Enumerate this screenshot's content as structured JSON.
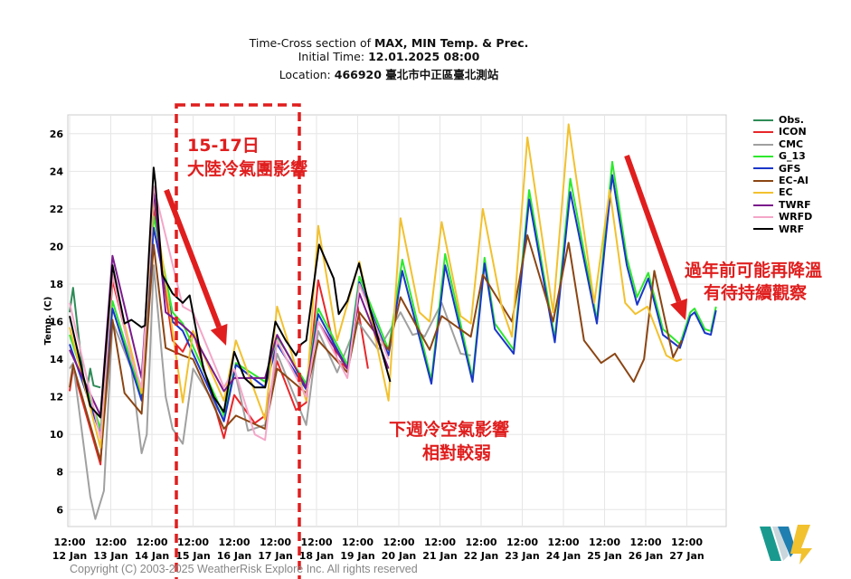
{
  "header": {
    "line1_prefix": "Time-Cross section of ",
    "line1_bold": "MAX, MIN Temp. & Prec.",
    "line2_prefix": "Initial Time: ",
    "line2_bold": "12.01.2025 08:00",
    "line3_prefix": "Location: ",
    "line3_bold": "466920 臺北市中正區臺北測站"
  },
  "annotations": {
    "box_title": "15-17日",
    "box_subtitle": "大陸冷氣團影響",
    "middle_line1": "下週冷空氣影響",
    "middle_line2": "相對較弱",
    "right_line1": "過年前可能再降溫",
    "right_line2": "有待持續觀察",
    "color": "#e01e1e"
  },
  "footer": {
    "copyright": "Copyright (C) 2003-2025 WeatherRisk Explore Inc. All rights reserved"
  },
  "logo": {
    "text": "W",
    "colors": [
      "#1a9a8f",
      "#c9d6dc",
      "#1f7fb0",
      "#f2c12e"
    ]
  },
  "chart_data": {
    "type": "line",
    "title": "Time-Cross section of MAX, MIN Temp. & Prec.",
    "ylabel": "Temp. (C)",
    "xlabel": "",
    "ylim": [
      5.1,
      27
    ],
    "xlim": [
      "12 Jan 12:00",
      "27 Jan 22:00"
    ],
    "yticks": [
      6,
      8,
      10,
      12,
      14,
      16,
      18,
      20,
      22,
      24,
      26
    ],
    "xticks": [
      [
        "12:00",
        "12 Jan"
      ],
      [
        "12:00",
        "13 Jan"
      ],
      [
        "12:00",
        "14 Jan"
      ],
      [
        "12:00",
        "15 Jan"
      ],
      [
        "12:00",
        "16 Jan"
      ],
      [
        "12:00",
        "17 Jan"
      ],
      [
        "12:00",
        "18 Jan"
      ],
      [
        "12:00",
        "19 Jan"
      ],
      [
        "12:00",
        "20 Jan"
      ],
      [
        "12:00",
        "21 Jan"
      ],
      [
        "12:00",
        "22 Jan"
      ],
      [
        "12:00",
        "23 Jan"
      ],
      [
        "12:00",
        "24 Jan"
      ],
      [
        "12:00",
        "25 Jan"
      ],
      [
        "12:00",
        "26 Jan"
      ],
      [
        "12:00",
        "27 Jan"
      ]
    ],
    "grid": true,
    "legend_position": "right",
    "series": [
      {
        "name": "Obs.",
        "color": "#2e8b57",
        "x": [
          "12 Jan 12:00",
          "12 Jan 14:00",
          "12 Jan 20:00",
          "12 Jan 22:00",
          "13 Jan 00:00",
          "13 Jan 02:00",
          "13 Jan 06:00"
        ],
        "y": [
          16.5,
          17.8,
          13.0,
          12.3,
          13.5,
          12.6,
          12.5
        ]
      },
      {
        "name": "ICON",
        "color": "#e8262a",
        "x": [
          "12 Jan 12:00",
          "12 Jan 14:00",
          "13 Jan 06:00",
          "13 Jan 13:00",
          "14 Jan 06:00",
          "14 Jan 13:00",
          "15 Jan 00:00",
          "15 Jan 06:00",
          "15 Jan 12:00",
          "16 Jan 06:00",
          "16 Jan 12:00",
          "17 Jan 00:00",
          "17 Jan 06:00",
          "17 Jan 13:00",
          "18 Jan 00:00",
          "18 Jan 06:00",
          "18 Jan 13:00",
          "19 Jan 00:00",
          "19 Jan 06:00",
          "19 Jan 12:00",
          "19 Jan 18:00"
        ],
        "y": [
          12.3,
          13.5,
          8.4,
          18.2,
          12.0,
          22.0,
          15.0,
          14.4,
          15.5,
          9.8,
          12.1,
          10.6,
          11.0,
          13.9,
          11.3,
          11.7,
          18.2,
          14.0,
          13.5,
          16.8,
          13.5
        ]
      },
      {
        "name": "CMC",
        "color": "#a0a0a0",
        "x": [
          "12 Jan 12:00",
          "12 Jan 14:00",
          "13 Jan 00:00",
          "13 Jan 03:00",
          "13 Jan 08:00",
          "13 Jan 13:00",
          "14 Jan 00:00",
          "14 Jan 06:00",
          "14 Jan 09:00",
          "14 Jan 13:00",
          "14 Jan 20:00",
          "15 Jan 00:00",
          "15 Jan 06:00",
          "15 Jan 12:00",
          "16 Jan 06:00",
          "16 Jan 12:00",
          "16 Jan 20:00",
          "17 Jan 06:00",
          "17 Jan 13:00",
          "18 Jan 06:00",
          "18 Jan 13:00",
          "19 Jan 00:00",
          "19 Jan 12:00",
          "20 Jan 00:00",
          "20 Jan 13:00",
          "20 Jan 20:00",
          "21 Jan 00:00",
          "21 Jan 03:00",
          "21 Jan 13:00",
          "22 Jan 00:00",
          "22 Jan 06:00"
        ],
        "y": [
          13.5,
          13.8,
          6.7,
          5.5,
          7.0,
          16.0,
          13.5,
          9.0,
          10.0,
          19.0,
          12.0,
          10.3,
          9.5,
          13.5,
          10.8,
          13.5,
          10.2,
          10.5,
          14.3,
          10.5,
          15.5,
          13.3,
          16.0,
          14.5,
          16.5,
          15.3,
          15.4,
          15.2,
          17.0,
          14.3,
          14.2
        ]
      },
      {
        "name": "G_13",
        "color": "#2ee82e",
        "x": [
          "12 Jan 12:00",
          "13 Jan 06:00",
          "13 Jan 13:00",
          "14 Jan 06:00",
          "14 Jan 13:00",
          "15 Jan 00:00",
          "15 Jan 06:00",
          "16 Jan 06:00",
          "16 Jan 13:00",
          "17 Jan 06:00",
          "17 Jan 13:00",
          "18 Jan 06:00",
          "18 Jan 13:00",
          "19 Jan 06:00",
          "19 Jan 13:00",
          "20 Jan 06:00",
          "20 Jan 14:00",
          "21 Jan 07:00",
          "21 Jan 15:00",
          "22 Jan 07:00",
          "22 Jan 14:00",
          "22 Jan 20:00",
          "23 Jan 07:00",
          "23 Jan 16:00",
          "24 Jan 07:00",
          "24 Jan 16:00",
          "25 Jan 07:30",
          "25 Jan 16:30",
          "26 Jan 01:00",
          "26 Jan 07:00",
          "26 Jan 13:30",
          "26 Jan 22:00",
          "27 Jan 08:00",
          "27 Jan 14:00",
          "27 Jan 16:30",
          "27 Jan 22:30",
          "28 Jan 02:00",
          "28 Jan 05:00"
        ],
        "y": [
          15.3,
          10.3,
          17.1,
          12.0,
          21.6,
          16.5,
          15.9,
          11.0,
          13.8,
          12.8,
          15.2,
          12.7,
          16.7,
          13.7,
          18.4,
          14.5,
          19.3,
          12.9,
          19.6,
          13.0,
          19.4,
          15.9,
          14.5,
          23.0,
          15.1,
          23.6,
          16.1,
          24.5,
          19.4,
          17.3,
          18.6,
          15.6,
          14.8,
          16.5,
          16.7,
          15.6,
          15.5,
          16.8
        ]
      },
      {
        "name": "GFS",
        "color": "#1a36c8",
        "x": [
          "12 Jan 12:00",
          "13 Jan 06:00",
          "13 Jan 13:00",
          "14 Jan 06:00",
          "14 Jan 13:00",
          "15 Jan 00:00",
          "15 Jan 06:00",
          "16 Jan 06:00",
          "16 Jan 13:00",
          "17 Jan 06:00",
          "17 Jan 13:00",
          "18 Jan 06:00",
          "18 Jan 13:00",
          "19 Jan 06:00",
          "19 Jan 13:00",
          "20 Jan 06:00",
          "20 Jan 14:00",
          "21 Jan 07:00",
          "21 Jan 15:00",
          "22 Jan 07:00",
          "22 Jan 14:00",
          "22 Jan 20:00",
          "23 Jan 07:00",
          "23 Jan 16:00",
          "24 Jan 07:00",
          "24 Jan 16:00",
          "25 Jan 07:30",
          "25 Jan 16:30",
          "26 Jan 01:00",
          "26 Jan 07:00",
          "26 Jan 13:30",
          "26 Jan 22:00",
          "27 Jan 08:00",
          "27 Jan 14:00",
          "27 Jan 16:30",
          "27 Jan 22:30",
          "28 Jan 02:00",
          "28 Jan 05:00"
        ],
        "y": [
          14.8,
          10.0,
          16.7,
          11.8,
          21.0,
          16.0,
          15.5,
          10.7,
          13.7,
          12.5,
          14.8,
          12.4,
          16.4,
          13.5,
          18.1,
          14.2,
          18.7,
          12.7,
          19.0,
          12.8,
          19.1,
          15.6,
          14.3,
          22.5,
          14.9,
          22.9,
          15.9,
          23.8,
          19.0,
          16.9,
          18.3,
          15.3,
          14.6,
          16.3,
          16.5,
          15.4,
          15.3,
          16.6
        ]
      },
      {
        "name": "EC-AI",
        "color": "#8b4513",
        "x": [
          "12 Jan 12:00",
          "12 Jan 14:00",
          "13 Jan 06:00",
          "13 Jan 13:00",
          "13 Jan 20:00",
          "14 Jan 06:00",
          "14 Jan 13:00",
          "14 Jan 20:00",
          "15 Jan 06:00",
          "15 Jan 12:00",
          "16 Jan 06:00",
          "16 Jan 13:00",
          "17 Jan 06:00",
          "17 Jan 13:00",
          "18 Jan 06:00",
          "18 Jan 13:00",
          "19 Jan 06:00",
          "19 Jan 13:00",
          "20 Jan 06:00",
          "20 Jan 13:00",
          "21 Jan 06:00",
          "21 Jan 13:00",
          "22 Jan 06:00",
          "22 Jan 13:00",
          "23 Jan 06:00",
          "23 Jan 15:00",
          "24 Jan 06:00",
          "24 Jan 15:00",
          "25 Jan 00:00",
          "25 Jan 10:00",
          "25 Jan 18:00",
          "26 Jan 05:00",
          "26 Jan 11:00",
          "26 Jan 17:00",
          "27 Jan 04:00",
          "27 Jan 09:00"
        ],
        "y": [
          12.5,
          13.7,
          8.6,
          16.1,
          12.2,
          11.1,
          20.1,
          14.6,
          14.2,
          14.0,
          10.3,
          11.0,
          10.3,
          13.5,
          12.2,
          15.0,
          13.3,
          16.5,
          14.5,
          17.3,
          14.5,
          16.3,
          15.2,
          18.5,
          16.0,
          20.6,
          16.0,
          20.2,
          15.0,
          13.8,
          14.3,
          12.8,
          14.0,
          18.7,
          14.1,
          15.0
        ]
      },
      {
        "name": "EC",
        "color": "#f2c12e",
        "x": [
          "12 Jan 12:00",
          "13 Jan 06:00",
          "13 Jan 13:00",
          "14 Jan 06:00",
          "14 Jan 13:00",
          "15 Jan 06:00",
          "15 Jan 12:00",
          "16 Jan 06:00",
          "16 Jan 13:00",
          "17 Jan 06:00",
          "17 Jan 13:00",
          "18 Jan 06:00",
          "18 Jan 13:00",
          "19 Jan 00:00",
          "19 Jan 13:00",
          "20 Jan 06:00",
          "20 Jan 13:00",
          "21 Jan 00:00",
          "21 Jan 06:00",
          "21 Jan 13:00",
          "22 Jan 00:00",
          "22 Jan 06:00",
          "22 Jan 13:00",
          "23 Jan 00:00",
          "23 Jan 06:00",
          "23 Jan 15:00",
          "24 Jan 06:00",
          "24 Jan 15:00",
          "25 Jan 06:00",
          "25 Jan 15:00",
          "26 Jan 00:00",
          "26 Jan 06:00",
          "26 Jan 13:00",
          "27 Jan 00:00",
          "27 Jan 06:00",
          "27 Jan 09:00"
        ],
        "y": [
          15.7,
          9.3,
          18.5,
          12.2,
          22.5,
          11.7,
          15.5,
          11.8,
          15.0,
          10.8,
          16.8,
          11.8,
          21.1,
          15.0,
          19.2,
          11.8,
          21.5,
          16.5,
          16.0,
          21.3,
          16.3,
          15.9,
          22.0,
          16.8,
          15.2,
          25.8,
          16.5,
          26.5,
          17.0,
          23.0,
          17.0,
          16.4,
          16.8,
          14.2,
          13.9,
          14.0
        ]
      },
      {
        "name": "TWRF",
        "color": "#7b1a8c",
        "x": [
          "12 Jan 12:00",
          "13 Jan 06:00",
          "13 Jan 13:00",
          "14 Jan 06:00",
          "14 Jan 13:00",
          "14 Jan 20:00",
          "15 Jan 06:00",
          "15 Jan 12:00",
          "16 Jan 06:00",
          "16 Jan 12:00",
          "17 Jan 06:00",
          "17 Jan 13:00",
          "18 Jan 06:00",
          "18 Jan 13:00",
          "19 Jan 06:00",
          "19 Jan 13:00",
          "20 Jan 06:00"
        ],
        "y": [
          14.5,
          11.0,
          19.5,
          13.0,
          23.0,
          16.5,
          15.8,
          15.3,
          12.3,
          13.0,
          13.0,
          15.3,
          12.5,
          16.0,
          13.5,
          17.5,
          13.5
        ]
      },
      {
        "name": "WRFD",
        "color": "#f4a6c8",
        "x": [
          "12 Jan 12:00",
          "13 Jan 06:00",
          "13 Jan 13:00",
          "14 Jan 00:00",
          "14 Jan 06:00",
          "14 Jan 13:00",
          "15 Jan 06:00",
          "15 Jan 12:00",
          "16 Jan 06:00",
          "16 Jan 12:00",
          "17 Jan 00:00",
          "17 Jan 06:00",
          "17 Jan 13:00",
          "18 Jan 06:00",
          "18 Jan 13:00",
          "19 Jan 06:00",
          "19 Jan 13:00",
          "20 Jan 06:00"
        ],
        "y": [
          17.0,
          9.8,
          18.5,
          14.0,
          12.5,
          23.2,
          16.8,
          16.5,
          12.5,
          13.5,
          10.0,
          9.7,
          15.0,
          12.0,
          16.0,
          13.0,
          18.0,
          14.0
        ]
      },
      {
        "name": "WRF",
        "color": "#000000",
        "x": [
          "12 Jan 12:00",
          "13 Jan 00:00",
          "13 Jan 06:00",
          "13 Jan 13:00",
          "13 Jan 20:00",
          "14 Jan 00:00",
          "14 Jan 06:00",
          "14 Jan 08:00",
          "14 Jan 13:00",
          "14 Jan 14:00",
          "14 Jan 18:00",
          "15 Jan 00:00",
          "15 Jan 06:00",
          "15 Jan 10:00",
          "15 Jan 18:00",
          "16 Jan 00:00",
          "16 Jan 06:00",
          "16 Jan 12:00",
          "16 Jan 18:00",
          "17 Jan 00:00",
          "17 Jan 06:00",
          "17 Jan 12:00",
          "17 Jan 18:00",
          "18 Jan 00:00",
          "18 Jan 03:00",
          "18 Jan 06:00",
          "18 Jan 13:30",
          "18 Jan 22:00",
          "19 Jan 01:00",
          "19 Jan 06:00",
          "19 Jan 12:48",
          "19 Jan 19:00",
          "20 Jan 07:00"
        ],
        "y": [
          16.3,
          11.5,
          10.9,
          19.0,
          15.9,
          16.1,
          15.7,
          15.8,
          24.2,
          23.4,
          18.5,
          17.5,
          17.0,
          17.4,
          13.5,
          12.0,
          11.2,
          14.4,
          13.0,
          12.5,
          12.5,
          16.0,
          15.0,
          14.2,
          14.8,
          15.0,
          20.1,
          18.3,
          16.4,
          17.1,
          19.1,
          16.7,
          12.8
        ]
      }
    ]
  }
}
